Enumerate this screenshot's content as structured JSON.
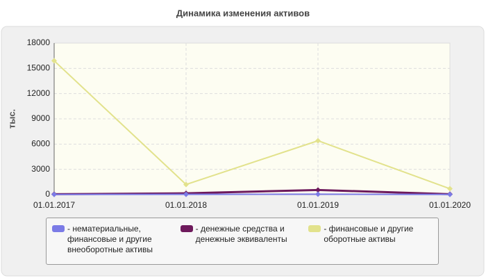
{
  "chart_data": {
    "type": "line",
    "title": "Динамика изменения активов",
    "y_label": "тыс.",
    "categories": [
      "01.01.2017",
      "01.01.2018",
      "01.01.2019",
      "01.01.2020"
    ],
    "series": [
      {
        "name": "- нематериальные, финансовые и другие внеоборотные активы",
        "color": "#7b7be6",
        "values": [
          20,
          30,
          50,
          20
        ]
      },
      {
        "name": "- денежные средства и денежные эквиваленты",
        "color": "#6e1a5c",
        "values": [
          50,
          150,
          550,
          50
        ]
      },
      {
        "name": "- финансовые и другие оборотные активы",
        "color": "#e2e28c",
        "values": [
          15900,
          1200,
          6400,
          700
        ]
      }
    ],
    "ylim": [
      0,
      18000
    ],
    "yticks": [
      0,
      3000,
      6000,
      9000,
      12000,
      15000,
      18000
    ],
    "grid": true
  }
}
